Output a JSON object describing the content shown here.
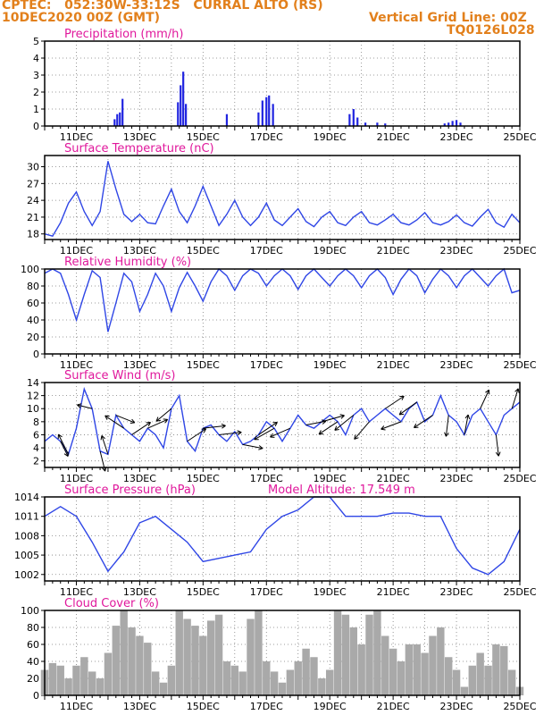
{
  "header": {
    "line1_left": "CPTEC:   052:30W-33:12S   CURRAL ALTO (RS)",
    "line2_left": "10DEC2020 00Z (GMT)",
    "line1_right": "Vertical Grid Line: 00Z",
    "line2_right": "TQ0126L028"
  },
  "colors": {
    "header": "#e2801c",
    "panel_title": "#e0189c",
    "series_line": "#2f46e6",
    "precip_bar": "#2024e0",
    "cloud_bar": "#a9a9a9",
    "arrow": "#000000",
    "grid": "#7f7f7f"
  },
  "x_axis": {
    "start": "10DEC2020 00Z",
    "end": "25DEC2020 00Z",
    "tick_labels": [
      "11DEC",
      "13DEC",
      "15DEC",
      "17DEC",
      "19DEC",
      "21DEC",
      "23DEC",
      "25DEC"
    ]
  },
  "chart_data": [
    {
      "type": "bar",
      "title": "Precipitation (mm/h)",
      "ylim": [
        0,
        5
      ],
      "yticks": [
        "0",
        "1",
        "2",
        "3",
        "4",
        "5"
      ],
      "grid": true,
      "x": [
        "12/05Z",
        "12/07Z",
        "12/09Z",
        "12/11Z",
        "14/05Z",
        "14/07Z",
        "14/09Z",
        "14/11Z",
        "15/18Z",
        "16/18Z",
        "16/21Z",
        "17/00Z",
        "17/02Z",
        "17/05Z",
        "19/15Z",
        "19/18Z",
        "19/21Z",
        "20/03Z",
        "20/12Z",
        "20/18Z",
        "22/15Z",
        "22/18Z",
        "22/21Z",
        "23/00Z",
        "23/03Z"
      ],
      "values": [
        0.4,
        0.7,
        0.8,
        1.6,
        1.4,
        2.4,
        3.2,
        1.3,
        0.7,
        0.8,
        1.5,
        1.7,
        1.8,
        1.3,
        0.7,
        1.0,
        0.5,
        0.2,
        0.2,
        0.15,
        0.15,
        0.2,
        0.3,
        0.35,
        0.2
      ]
    },
    {
      "type": "line",
      "title": "Surface Temperature (nC)",
      "ylim": [
        17,
        32
      ],
      "yticks": [
        "18",
        "21",
        "24",
        "27",
        "30"
      ],
      "grid": true,
      "x": [
        "10/00Z",
        "10/06Z",
        "10/12Z",
        "10/18Z",
        "11/00Z",
        "11/06Z",
        "11/12Z",
        "11/18Z",
        "12/00Z",
        "12/06Z",
        "12/12Z",
        "12/18Z",
        "13/00Z",
        "13/06Z",
        "13/12Z",
        "13/18Z",
        "14/00Z",
        "14/06Z",
        "14/12Z",
        "14/18Z",
        "15/00Z",
        "15/06Z",
        "15/12Z",
        "15/18Z",
        "16/00Z",
        "16/06Z",
        "16/12Z",
        "16/18Z",
        "17/00Z",
        "17/06Z",
        "17/12Z",
        "17/18Z",
        "18/00Z",
        "18/06Z",
        "18/12Z",
        "18/18Z",
        "19/00Z",
        "19/06Z",
        "19/12Z",
        "19/18Z",
        "20/00Z",
        "20/06Z",
        "20/12Z",
        "20/18Z",
        "21/00Z",
        "21/06Z",
        "21/12Z",
        "21/18Z",
        "22/00Z",
        "22/06Z",
        "22/12Z",
        "22/18Z",
        "23/00Z",
        "23/06Z",
        "23/12Z",
        "23/18Z",
        "24/00Z",
        "24/06Z",
        "24/12Z",
        "24/18Z",
        "25/00Z"
      ],
      "values": [
        18,
        17.6,
        20,
        23.5,
        25.5,
        22,
        19.5,
        22,
        31,
        26,
        21.5,
        20.2,
        21.5,
        20,
        19.8,
        23,
        26,
        22,
        20,
        23,
        26.5,
        23,
        19.5,
        21.5,
        24,
        21,
        19.5,
        21,
        23.5,
        20.5,
        19.5,
        21,
        22.5,
        20.2,
        19.3,
        21,
        22,
        20,
        19.5,
        21,
        22,
        20,
        19.6,
        20.5,
        21.5,
        20,
        19.6,
        20.5,
        21.8,
        20,
        19.6,
        20.2,
        21.4,
        20,
        19.4,
        21,
        22.4,
        20,
        19.2,
        21.5,
        20
      ]
    },
    {
      "type": "line",
      "title": "Relative Humidity (%)",
      "ylim": [
        0,
        100
      ],
      "yticks": [
        "0",
        "20",
        "40",
        "60",
        "80",
        "100"
      ],
      "grid": true,
      "x": [
        "10/00Z",
        "10/06Z",
        "10/12Z",
        "10/18Z",
        "11/00Z",
        "11/06Z",
        "11/12Z",
        "11/18Z",
        "12/00Z",
        "12/06Z",
        "12/12Z",
        "12/18Z",
        "13/00Z",
        "13/06Z",
        "13/12Z",
        "13/18Z",
        "14/00Z",
        "14/06Z",
        "14/12Z",
        "14/18Z",
        "15/00Z",
        "15/06Z",
        "15/12Z",
        "15/18Z",
        "16/00Z",
        "16/06Z",
        "16/12Z",
        "16/18Z",
        "17/00Z",
        "17/06Z",
        "17/12Z",
        "17/18Z",
        "18/00Z",
        "18/06Z",
        "18/12Z",
        "18/18Z",
        "19/00Z",
        "19/06Z",
        "19/12Z",
        "19/18Z",
        "20/00Z",
        "20/06Z",
        "20/12Z",
        "20/18Z",
        "21/00Z",
        "21/06Z",
        "21/12Z",
        "21/18Z",
        "22/00Z",
        "22/06Z",
        "22/12Z",
        "22/18Z",
        "23/00Z",
        "23/06Z",
        "23/12Z",
        "23/18Z",
        "24/00Z",
        "24/06Z",
        "24/12Z",
        "24/18Z",
        "25/00Z"
      ],
      "values": [
        95,
        100,
        95,
        70,
        40,
        70,
        98,
        90,
        26,
        60,
        95,
        85,
        50,
        70,
        95,
        80,
        50,
        78,
        96,
        80,
        62,
        85,
        100,
        92,
        75,
        92,
        100,
        95,
        80,
        92,
        100,
        92,
        76,
        92,
        100,
        90,
        80,
        92,
        100,
        92,
        78,
        92,
        100,
        90,
        70,
        88,
        100,
        92,
        72,
        88,
        100,
        92,
        78,
        92,
        100,
        90,
        80,
        92,
        100,
        72,
        75
      ]
    },
    {
      "type": "line",
      "title": "Surface Wind (m/s)",
      "ylim": [
        1,
        14
      ],
      "yticks": [
        "2",
        "4",
        "6",
        "8",
        "10",
        "12",
        "14"
      ],
      "grid": true,
      "x": [
        "10/00Z",
        "10/06Z",
        "10/12Z",
        "10/18Z",
        "11/00Z",
        "11/06Z",
        "11/12Z",
        "11/18Z",
        "12/00Z",
        "12/06Z",
        "12/12Z",
        "12/18Z",
        "13/00Z",
        "13/06Z",
        "13/12Z",
        "13/18Z",
        "14/00Z",
        "14/06Z",
        "14/12Z",
        "14/18Z",
        "15/00Z",
        "15/06Z",
        "15/12Z",
        "15/18Z",
        "16/00Z",
        "16/06Z",
        "16/12Z",
        "16/18Z",
        "17/00Z",
        "17/06Z",
        "17/12Z",
        "17/18Z",
        "18/00Z",
        "18/06Z",
        "18/12Z",
        "18/18Z",
        "19/00Z",
        "19/06Z",
        "19/12Z",
        "19/18Z",
        "20/00Z",
        "20/06Z",
        "20/12Z",
        "20/18Z",
        "21/00Z",
        "21/06Z",
        "21/12Z",
        "21/18Z",
        "22/00Z",
        "22/06Z",
        "22/12Z",
        "22/18Z",
        "23/00Z",
        "23/06Z",
        "23/12Z",
        "23/18Z",
        "24/00Z",
        "24/06Z",
        "24/12Z",
        "24/18Z",
        "25/00Z"
      ],
      "values": [
        5,
        6,
        5,
        3,
        7,
        13,
        10,
        3.5,
        3,
        9,
        7,
        6,
        5,
        7,
        6,
        4,
        10,
        12,
        5,
        3.5,
        7,
        7.5,
        6,
        5,
        6.5,
        4.5,
        5,
        6,
        8,
        7,
        5,
        7,
        9,
        7.5,
        7,
        8,
        9,
        8,
        6,
        9,
        10,
        8,
        9,
        10,
        9,
        8,
        10,
        11,
        8,
        9,
        12,
        9,
        8,
        6,
        9,
        10,
        8,
        6,
        9,
        10,
        11
      ],
      "arrows": [
        {
          "x": "10/12Z",
          "dx": 0.6,
          "dy": -1.2
        },
        {
          "x": "10/18Z",
          "dx": -0.8,
          "dy": 1.6
        },
        {
          "x": "11/12Z",
          "dx": -1.2,
          "dy": 0.3
        },
        {
          "x": "11/18Z",
          "dx": 0.4,
          "dy": -1.6
        },
        {
          "x": "12/00Z",
          "dx": -0.5,
          "dy": 1.5
        },
        {
          "x": "12/06Z",
          "dx": 1.5,
          "dy": -0.6
        },
        {
          "x": "12/12Z",
          "dx": -1.5,
          "dy": 1.0
        },
        {
          "x": "12/18Z",
          "dx": 1.5,
          "dy": 1.0
        },
        {
          "x": "13/06Z",
          "dx": 1.6,
          "dy": 0.7
        },
        {
          "x": "14/00Z",
          "dx": -1.2,
          "dy": -1.0
        },
        {
          "x": "14/12Z",
          "dx": 1.5,
          "dy": 1.0
        },
        {
          "x": "15/00Z",
          "dx": 1.8,
          "dy": 0.2
        },
        {
          "x": "15/12Z",
          "dx": 1.8,
          "dy": 0.2
        },
        {
          "x": "16/06Z",
          "dx": 1.6,
          "dy": -0.3
        },
        {
          "x": "16/18Z",
          "dx": 1.5,
          "dy": 1.0
        },
        {
          "x": "17/06Z",
          "dx": -1.6,
          "dy": -0.9
        },
        {
          "x": "17/18Z",
          "dx": -1.6,
          "dy": -0.7
        },
        {
          "x": "18/06Z",
          "dx": 1.6,
          "dy": 0.3
        },
        {
          "x": "18/18Z",
          "dx": 1.8,
          "dy": 0.5
        },
        {
          "x": "19/06Z",
          "dx": -1.5,
          "dy": -1.0
        },
        {
          "x": "19/18Z",
          "dx": -1.5,
          "dy": -1.2
        },
        {
          "x": "20/06Z",
          "dx": -1.2,
          "dy": -1.4
        },
        {
          "x": "20/18Z",
          "dx": 1.5,
          "dy": 1.0
        },
        {
          "x": "21/06Z",
          "dx": -1.6,
          "dy": -0.6
        },
        {
          "x": "21/18Z",
          "dx": -1.4,
          "dy": -1.0
        },
        {
          "x": "22/06Z",
          "dx": -1.5,
          "dy": -1.0
        },
        {
          "x": "22/18Z",
          "dx": -0.2,
          "dy": -1.7
        },
        {
          "x": "23/06Z",
          "dx": 0.3,
          "dy": 1.6
        },
        {
          "x": "23/18Z",
          "dx": 0.7,
          "dy": 1.5
        },
        {
          "x": "24/06Z",
          "dx": 0.2,
          "dy": -1.7
        },
        {
          "x": "24/18Z",
          "dx": 0.5,
          "dy": 1.6
        }
      ]
    },
    {
      "type": "line",
      "title": "Surface Pressure (hPa)",
      "annotation": "Model Altitude: 17.549  m",
      "ylim": [
        1001,
        1014
      ],
      "yticks": [
        "1002",
        "1005",
        "1008",
        "1011",
        "1014"
      ],
      "grid": true,
      "x": [
        "10/00Z",
        "10/12Z",
        "11/00Z",
        "11/12Z",
        "12/00Z",
        "12/12Z",
        "13/00Z",
        "13/12Z",
        "14/00Z",
        "14/12Z",
        "15/00Z",
        "15/12Z",
        "16/00Z",
        "16/12Z",
        "17/00Z",
        "17/12Z",
        "18/00Z",
        "18/12Z",
        "19/00Z",
        "19/12Z",
        "20/00Z",
        "20/12Z",
        "21/00Z",
        "21/12Z",
        "22/00Z",
        "22/12Z",
        "23/00Z",
        "23/12Z",
        "24/00Z",
        "24/12Z",
        "25/00Z"
      ],
      "values": [
        1011,
        1012.5,
        1011,
        1007,
        1002.5,
        1005.5,
        1010,
        1011,
        1009,
        1007,
        1004,
        1004.5,
        1005,
        1005.5,
        1009,
        1011,
        1012,
        1014,
        1014,
        1011,
        1011,
        1011,
        1011.5,
        1011.5,
        1011,
        1011,
        1006,
        1003,
        1002,
        1004,
        1009
      ]
    },
    {
      "type": "bar",
      "title": "Cloud Cover (%)",
      "ylim": [
        0,
        100
      ],
      "yticks": [
        "0",
        "20",
        "40",
        "60",
        "80",
        "100"
      ],
      "grid": true,
      "x": [
        "10/00Z",
        "10/06Z",
        "10/12Z",
        "10/18Z",
        "11/00Z",
        "11/06Z",
        "11/12Z",
        "11/18Z",
        "12/00Z",
        "12/06Z",
        "12/12Z",
        "12/18Z",
        "13/00Z",
        "13/06Z",
        "13/12Z",
        "13/18Z",
        "14/00Z",
        "14/06Z",
        "14/12Z",
        "14/18Z",
        "15/00Z",
        "15/06Z",
        "15/12Z",
        "15/18Z",
        "16/00Z",
        "16/06Z",
        "16/12Z",
        "16/18Z",
        "17/00Z",
        "17/06Z",
        "17/12Z",
        "17/18Z",
        "18/00Z",
        "18/06Z",
        "18/12Z",
        "18/18Z",
        "19/00Z",
        "19/06Z",
        "19/12Z",
        "19/18Z",
        "20/00Z",
        "20/06Z",
        "20/12Z",
        "20/18Z",
        "21/00Z",
        "21/06Z",
        "21/12Z",
        "21/18Z",
        "22/00Z",
        "22/06Z",
        "22/12Z",
        "22/18Z",
        "23/00Z",
        "23/06Z",
        "23/12Z",
        "23/18Z",
        "24/00Z",
        "24/06Z",
        "24/12Z",
        "24/18Z",
        "25/00Z"
      ],
      "values": [
        30,
        38,
        35,
        20,
        35,
        45,
        28,
        20,
        50,
        82,
        100,
        80,
        70,
        62,
        28,
        15,
        35,
        100,
        90,
        82,
        70,
        88,
        95,
        40,
        35,
        28,
        90,
        100,
        40,
        28,
        15,
        30,
        40,
        55,
        45,
        20,
        30,
        100,
        95,
        80,
        60,
        95,
        100,
        70,
        55,
        40,
        60,
        60,
        50,
        70,
        80,
        45,
        30,
        10,
        35,
        50,
        35,
        60,
        58,
        30,
        10
      ]
    }
  ]
}
